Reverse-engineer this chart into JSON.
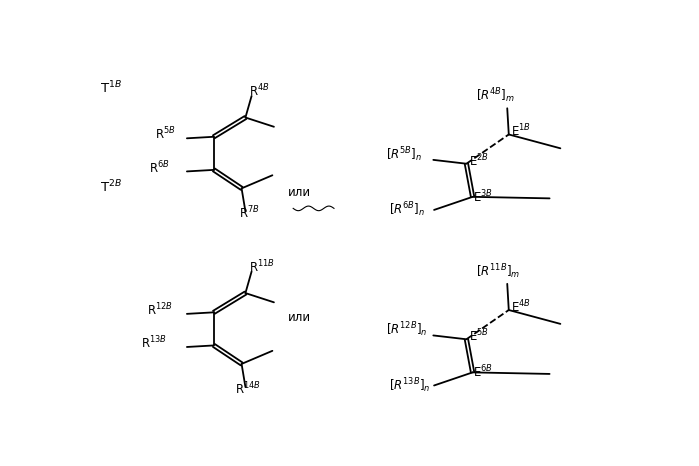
{
  "bg_color": "#ffffff",
  "figsize": [
    6.99,
    4.66
  ],
  "dpi": 100,
  "lw": 1.3
}
